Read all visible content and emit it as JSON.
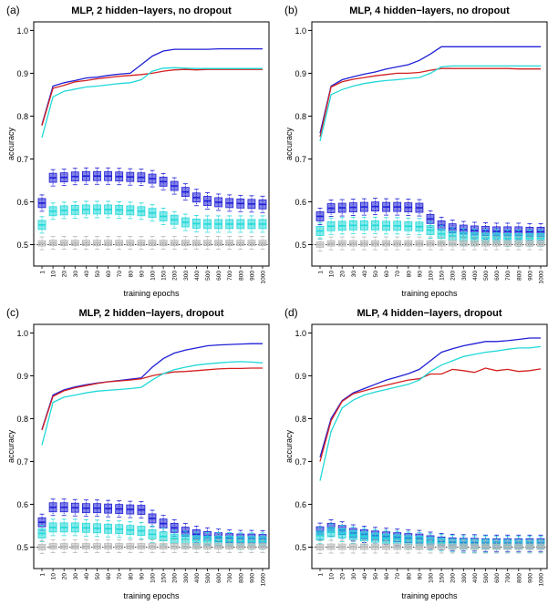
{
  "colors": {
    "blue": "#1f1fd6",
    "red": "#d42020",
    "cyan": "#22d8d8",
    "gray": "#b9b9b9",
    "axis": "#000000"
  },
  "chart_data": [
    {
      "type": "line",
      "panel_label": "(a)",
      "title": "MLP, 2 hidden−layers, no dropout",
      "xlabel": "training epochs",
      "ylabel": "accuracy",
      "ylim": [
        0.45,
        1.02
      ],
      "yticks": [
        "0.5",
        "0.6",
        "0.7",
        "0.8",
        "0.9",
        "1.0"
      ],
      "reference_line": 0.5,
      "x": [
        "1",
        "10",
        "20",
        "30",
        "40",
        "50",
        "60",
        "70",
        "80",
        "90",
        "100",
        "150",
        "200",
        "300",
        "400",
        "500",
        "600",
        "700",
        "800",
        "900",
        "1000"
      ],
      "lines": [
        {
          "color": "blue",
          "values": [
            0.78,
            0.87,
            0.878,
            0.883,
            0.889,
            0.891,
            0.895,
            0.898,
            0.9,
            0.92,
            0.94,
            0.952,
            0.956,
            0.956,
            0.956,
            0.956,
            0.957,
            0.957,
            0.957,
            0.957,
            0.957
          ]
        },
        {
          "color": "red",
          "values": [
            0.778,
            0.865,
            0.872,
            0.88,
            0.883,
            0.887,
            0.89,
            0.893,
            0.895,
            0.897,
            0.9,
            0.905,
            0.908,
            0.909,
            0.908,
            0.909,
            0.909,
            0.909,
            0.909,
            0.909,
            0.909
          ]
        },
        {
          "color": "cyan",
          "values": [
            0.75,
            0.845,
            0.858,
            0.863,
            0.868,
            0.87,
            0.873,
            0.876,
            0.878,
            0.885,
            0.905,
            0.912,
            0.913,
            0.912,
            0.911,
            0.911,
            0.911,
            0.911,
            0.911,
            0.911,
            0.911
          ]
        }
      ],
      "box_medians": [
        {
          "color": "blue",
          "values": [
            0.597,
            0.656,
            0.657,
            0.659,
            0.66,
            0.66,
            0.66,
            0.659,
            0.658,
            0.657,
            0.654,
            0.647,
            0.637,
            0.623,
            0.61,
            0.602,
            0.599,
            0.597,
            0.596,
            0.595,
            0.594
          ]
        },
        {
          "color": "cyan",
          "values": [
            0.546,
            0.578,
            0.58,
            0.581,
            0.582,
            0.582,
            0.582,
            0.581,
            0.58,
            0.578,
            0.574,
            0.566,
            0.558,
            0.552,
            0.549,
            0.548,
            0.548,
            0.548,
            0.548,
            0.548,
            0.548
          ]
        },
        {
          "color": "gray",
          "values": [
            0.503,
            0.504,
            0.504,
            0.504,
            0.504,
            0.504,
            0.504,
            0.504,
            0.504,
            0.504,
            0.504,
            0.504,
            0.504,
            0.504,
            0.504,
            0.504,
            0.504,
            0.504,
            0.504,
            0.504,
            0.504
          ]
        }
      ]
    },
    {
      "type": "line",
      "panel_label": "(b)",
      "title": "MLP, 4 hidden−layers, no dropout",
      "xlabel": "training epochs",
      "ylabel": "accuracy",
      "ylim": [
        0.45,
        1.02
      ],
      "yticks": [
        "0.5",
        "0.6",
        "0.7",
        "0.8",
        "0.9",
        "1.0"
      ],
      "reference_line": 0.5,
      "x": [
        "1",
        "10",
        "20",
        "30",
        "40",
        "50",
        "60",
        "70",
        "80",
        "90",
        "100",
        "150",
        "200",
        "300",
        "400",
        "500",
        "600",
        "700",
        "800",
        "900",
        "1000"
      ],
      "lines": [
        {
          "color": "blue",
          "values": [
            0.76,
            0.87,
            0.885,
            0.892,
            0.898,
            0.903,
            0.91,
            0.915,
            0.92,
            0.93,
            0.945,
            0.962,
            0.962,
            0.962,
            0.962,
            0.962,
            0.962,
            0.962,
            0.962,
            0.962,
            0.962
          ]
        },
        {
          "color": "red",
          "values": [
            0.752,
            0.868,
            0.88,
            0.886,
            0.89,
            0.894,
            0.897,
            0.9,
            0.9,
            0.902,
            0.907,
            0.911,
            0.911,
            0.911,
            0.911,
            0.911,
            0.911,
            0.911,
            0.91,
            0.91,
            0.91
          ]
        },
        {
          "color": "cyan",
          "values": [
            0.742,
            0.85,
            0.862,
            0.87,
            0.876,
            0.88,
            0.883,
            0.885,
            0.888,
            0.89,
            0.9,
            0.915,
            0.917,
            0.917,
            0.917,
            0.917,
            0.917,
            0.917,
            0.917,
            0.917,
            0.917
          ]
        }
      ],
      "box_medians": [
        {
          "color": "blue",
          "values": [
            0.566,
            0.585,
            0.586,
            0.587,
            0.588,
            0.589,
            0.588,
            0.588,
            0.587,
            0.586,
            0.56,
            0.545,
            0.538,
            0.535,
            0.533,
            0.532,
            0.531,
            0.531,
            0.531,
            0.53,
            0.53
          ]
        },
        {
          "color": "cyan",
          "values": [
            0.532,
            0.543,
            0.544,
            0.545,
            0.545,
            0.545,
            0.544,
            0.544,
            0.543,
            0.542,
            0.534,
            0.525,
            0.52,
            0.518,
            0.517,
            0.516,
            0.516,
            0.515,
            0.515,
            0.515,
            0.515
          ]
        },
        {
          "color": "gray",
          "values": [
            0.5,
            0.503,
            0.503,
            0.503,
            0.503,
            0.503,
            0.503,
            0.503,
            0.503,
            0.503,
            0.503,
            0.503,
            0.503,
            0.503,
            0.503,
            0.503,
            0.503,
            0.503,
            0.503,
            0.503,
            0.503
          ]
        }
      ]
    },
    {
      "type": "line",
      "panel_label": "(c)",
      "title": "MLP, 2 hidden−layers, dropout",
      "xlabel": "training epochs",
      "ylabel": "accuracy",
      "ylim": [
        0.45,
        1.02
      ],
      "yticks": [
        "0.5",
        "0.6",
        "0.7",
        "0.8",
        "0.9",
        "1.0"
      ],
      "reference_line": 0.5,
      "x": [
        "1",
        "10",
        "20",
        "30",
        "40",
        "50",
        "60",
        "70",
        "80",
        "90",
        "100",
        "150",
        "200",
        "300",
        "400",
        "500",
        "600",
        "700",
        "800",
        "900",
        "1000"
      ],
      "lines": [
        {
          "color": "blue",
          "values": [
            0.775,
            0.855,
            0.867,
            0.874,
            0.879,
            0.883,
            0.886,
            0.889,
            0.892,
            0.895,
            0.92,
            0.94,
            0.953,
            0.96,
            0.965,
            0.97,
            0.972,
            0.973,
            0.974,
            0.975,
            0.975
          ]
        },
        {
          "color": "red",
          "values": [
            0.773,
            0.852,
            0.865,
            0.872,
            0.877,
            0.882,
            0.886,
            0.888,
            0.89,
            0.893,
            0.9,
            0.905,
            0.909,
            0.91,
            0.912,
            0.914,
            0.916,
            0.917,
            0.917,
            0.918,
            0.918
          ]
        },
        {
          "color": "cyan",
          "values": [
            0.738,
            0.838,
            0.85,
            0.855,
            0.86,
            0.864,
            0.866,
            0.868,
            0.87,
            0.873,
            0.89,
            0.905,
            0.914,
            0.92,
            0.925,
            0.928,
            0.93,
            0.932,
            0.933,
            0.932,
            0.93
          ]
        }
      ],
      "box_medians": [
        {
          "color": "blue",
          "values": [
            0.558,
            0.593,
            0.593,
            0.592,
            0.591,
            0.591,
            0.59,
            0.589,
            0.588,
            0.587,
            0.567,
            0.555,
            0.545,
            0.536,
            0.53,
            0.526,
            0.523,
            0.521,
            0.52,
            0.52,
            0.519
          ]
        },
        {
          "color": "cyan",
          "values": [
            0.532,
            0.546,
            0.546,
            0.546,
            0.545,
            0.544,
            0.543,
            0.542,
            0.54,
            0.538,
            0.53,
            0.525,
            0.52,
            0.518,
            0.516,
            0.515,
            0.515,
            0.515,
            0.514,
            0.514,
            0.514
          ]
        },
        {
          "color": "gray",
          "values": [
            0.5,
            0.502,
            0.502,
            0.502,
            0.502,
            0.502,
            0.502,
            0.502,
            0.502,
            0.502,
            0.502,
            0.502,
            0.502,
            0.502,
            0.502,
            0.502,
            0.502,
            0.502,
            0.502,
            0.502,
            0.502
          ]
        }
      ]
    },
    {
      "type": "line",
      "panel_label": "(d)",
      "title": "MLP, 4 hidden−layers, dropout",
      "xlabel": "training epochs",
      "ylabel": "accuracy",
      "ylim": [
        0.45,
        1.02
      ],
      "yticks": [
        "0.5",
        "0.6",
        "0.7",
        "0.8",
        "0.9",
        "1.0"
      ],
      "reference_line": 0.5,
      "x": [
        "1",
        "10",
        "20",
        "30",
        "40",
        "50",
        "60",
        "70",
        "80",
        "90",
        "100",
        "150",
        "200",
        "300",
        "400",
        "500",
        "600",
        "700",
        "800",
        "900",
        "1000"
      ],
      "lines": [
        {
          "color": "blue",
          "values": [
            0.71,
            0.8,
            0.842,
            0.86,
            0.87,
            0.88,
            0.89,
            0.897,
            0.905,
            0.915,
            0.935,
            0.955,
            0.963,
            0.97,
            0.975,
            0.98,
            0.98,
            0.982,
            0.985,
            0.988,
            0.988
          ]
        },
        {
          "color": "red",
          "values": [
            0.7,
            0.795,
            0.84,
            0.858,
            0.865,
            0.872,
            0.878,
            0.884,
            0.89,
            0.893,
            0.904,
            0.904,
            0.915,
            0.912,
            0.908,
            0.918,
            0.912,
            0.915,
            0.91,
            0.912,
            0.916
          ]
        },
        {
          "color": "cyan",
          "values": [
            0.655,
            0.77,
            0.825,
            0.843,
            0.855,
            0.862,
            0.868,
            0.874,
            0.88,
            0.89,
            0.91,
            0.925,
            0.935,
            0.945,
            0.95,
            0.955,
            0.958,
            0.962,
            0.965,
            0.965,
            0.968
          ]
        }
      ],
      "box_medians": [
        {
          "color": "blue",
          "values": [
            0.537,
            0.545,
            0.54,
            0.533,
            0.53,
            0.527,
            0.525,
            0.523,
            0.521,
            0.52,
            0.516,
            0.513,
            0.511,
            0.51,
            0.51,
            0.509,
            0.509,
            0.509,
            0.509,
            0.509,
            0.509
          ]
        },
        {
          "color": "cyan",
          "values": [
            0.527,
            0.535,
            0.532,
            0.528,
            0.525,
            0.522,
            0.52,
            0.518,
            0.516,
            0.515,
            0.512,
            0.51,
            0.508,
            0.507,
            0.507,
            0.507,
            0.506,
            0.506,
            0.506,
            0.506,
            0.506
          ]
        },
        {
          "color": "gray",
          "values": [
            0.5,
            0.501,
            0.501,
            0.501,
            0.501,
            0.501,
            0.501,
            0.501,
            0.501,
            0.501,
            0.501,
            0.501,
            0.501,
            0.501,
            0.501,
            0.501,
            0.501,
            0.501,
            0.501,
            0.501,
            0.501
          ]
        }
      ]
    }
  ]
}
